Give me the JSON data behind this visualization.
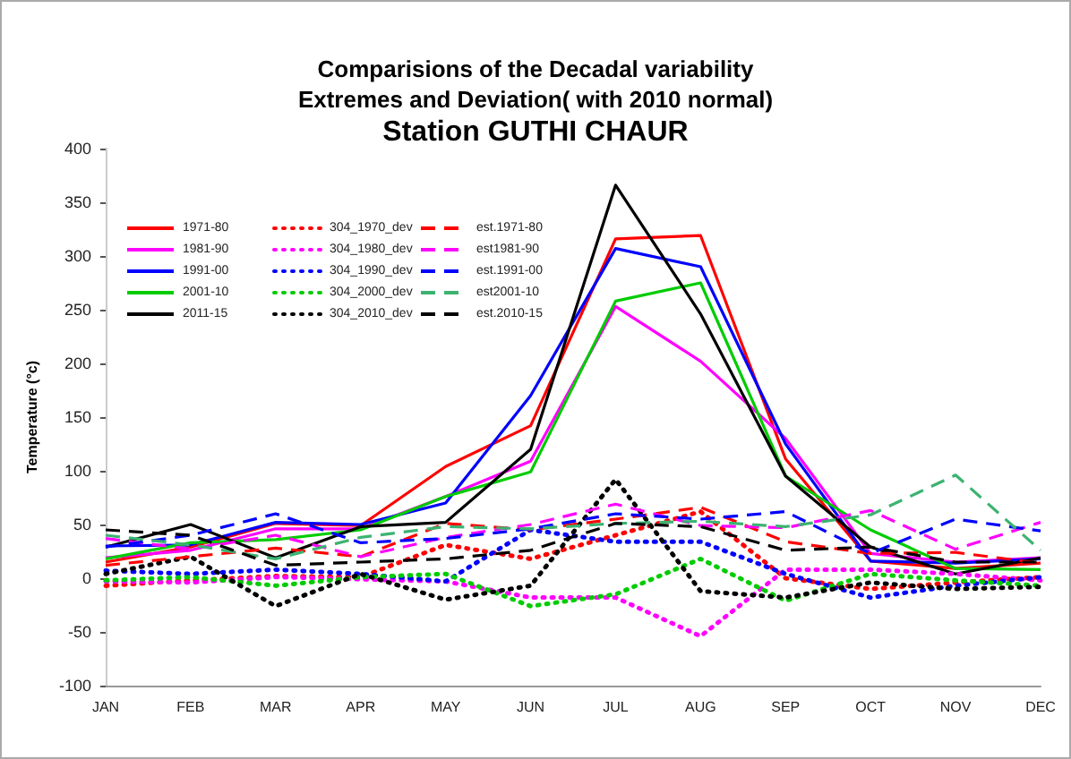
{
  "chart_data": {
    "type": "line",
    "title": "Comparisions of the Decadal variability\nExtremes and Deviation( with 2010 normal)",
    "subtitle": "Station GUTHI CHAUR",
    "ylabel": "Temperature (°c)",
    "categories": [
      "JAN",
      "FEB",
      "MAR",
      "APR",
      "MAY",
      "JUN",
      "JUL",
      "AUG",
      "SEP",
      "OCT",
      "NOV",
      "DEC"
    ],
    "ylim": [
      -100,
      400
    ],
    "yticks": [
      -100,
      -50,
      0,
      50,
      100,
      150,
      200,
      250,
      300,
      350,
      400
    ],
    "grid": false,
    "legend": "top left",
    "marker": "none",
    "series": [
      {
        "name": "1971-80",
        "color": "#ff0000",
        "line_style": "solid",
        "values": [
          15,
          29,
          51,
          49,
          104,
          142,
          316,
          319,
          111,
          16,
          9,
          14
        ]
      },
      {
        "name": "1981-90",
        "color": "#ff00ff",
        "line_style": "solid",
        "values": [
          19,
          26,
          46,
          46,
          76,
          109,
          253,
          202,
          130,
          23,
          15,
          19
        ]
      },
      {
        "name": "1991-00",
        "color": "#0000ff",
        "line_style": "solid",
        "values": [
          30,
          31,
          52,
          50,
          70,
          170,
          307,
          290,
          125,
          16,
          14,
          18
        ]
      },
      {
        "name": "2001-10",
        "color": "#00cc00",
        "line_style": "solid",
        "values": [
          18,
          33,
          36,
          45,
          76,
          99,
          258,
          275,
          95,
          45,
          9,
          8
        ]
      },
      {
        "name": "2011-15",
        "color": "#000000",
        "line_style": "solid",
        "values": [
          29,
          50,
          19,
          48,
          52,
          120,
          366,
          246,
          95,
          29,
          4,
          19
        ]
      },
      {
        "name": "304_1970_dev",
        "color": "#ff0000",
        "line_style": "dotted",
        "values": [
          -7,
          -2,
          2,
          1,
          31,
          18,
          40,
          62,
          0,
          -10,
          -4,
          1
        ]
      },
      {
        "name": "304_1980_dev",
        "color": "#ff00ff",
        "line_style": "dotted",
        "values": [
          -3,
          -4,
          1,
          -1,
          -3,
          -18,
          -18,
          -54,
          8,
          8,
          4,
          -2
        ]
      },
      {
        "name": "304_1990_dev",
        "color": "#0000ff",
        "line_style": "dotted",
        "values": [
          7,
          4,
          8,
          4,
          -3,
          45,
          34,
          34,
          4,
          -18,
          -7,
          1
        ]
      },
      {
        "name": "304_2000_dev",
        "color": "#00cc00",
        "line_style": "dotted",
        "values": [
          -2,
          1,
          -7,
          1,
          4,
          -26,
          -15,
          18,
          -21,
          4,
          -2,
          -7
        ]
      },
      {
        "name": "304_2010_dev",
        "color": "#000000",
        "line_style": "dotted",
        "values": [
          4,
          20,
          -26,
          4,
          -20,
          -7,
          92,
          -12,
          -18,
          -4,
          -10,
          -8
        ]
      },
      {
        "name": "est.1971-80",
        "color": "#ff0000",
        "line_style": "dashed",
        "values": [
          12,
          20,
          28,
          20,
          51,
          45,
          55,
          66,
          34,
          23,
          24,
          14
        ]
      },
      {
        "name": "est1981-90",
        "color": "#ff00ff",
        "line_style": "dashed",
        "values": [
          37,
          27,
          40,
          20,
          38,
          50,
          69,
          49,
          47,
          63,
          27,
          52
        ]
      },
      {
        "name": "est.1991-00",
        "color": "#0000ff",
        "line_style": "dashed",
        "values": [
          29,
          40,
          60,
          33,
          37,
          46,
          60,
          55,
          62,
          23,
          55,
          44
        ]
      },
      {
        "name": "est2001-10",
        "color": "#3cb371",
        "line_style": "dashed",
        "values": [
          40,
          31,
          18,
          38,
          48,
          46,
          51,
          53,
          48,
          59,
          96,
          26
        ]
      },
      {
        "name": "est.2010-15",
        "color": "#000000",
        "line_style": "dashed",
        "values": [
          45,
          40,
          12,
          15,
          18,
          26,
          51,
          48,
          26,
          29,
          15,
          15
        ]
      }
    ]
  }
}
